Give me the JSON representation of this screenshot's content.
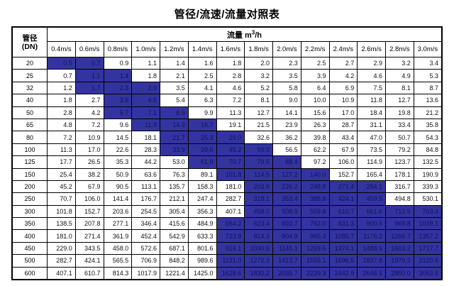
{
  "title": "管径/流速/流量对照表",
  "header": {
    "pipe_label_line1": "管径",
    "pipe_label_line2": "(DN)",
    "flow_label_prefix": "流量 m",
    "flow_label_sup": "3",
    "flow_label_suffix": "/h"
  },
  "colors": {
    "highlight_bg": "#3434A0",
    "highlight_text": "#10105C",
    "border": "#000000"
  },
  "chart_data": {
    "type": "table",
    "title": "管径/流速/流量对照表",
    "corner_header": "管径 (DN)",
    "value_unit": "流量 m3/h",
    "columns": [
      "0.4m/s",
      "0.6m/s",
      "0.8m/s",
      "1.0m/s",
      "1.2m/s",
      "1.4m/s",
      "1.6m/s",
      "1.8m/s",
      "2.0m/s",
      "2.2m/s",
      "2.4m/s",
      "2.6m/s",
      "2.8m/s",
      "3.0m/s"
    ],
    "rows": [
      {
        "dn": "20",
        "values": [
          "0.5",
          "0.7",
          "0.9",
          "1.1",
          "1.4",
          "1.6",
          "1.8",
          "2.0",
          "2.3",
          "2.5",
          "2.7",
          "2.9",
          "3.2",
          "3.4"
        ],
        "highlight_from": 0,
        "highlight_to": 1
      },
      {
        "dn": "25",
        "values": [
          "0.7",
          "1.1",
          "1.4",
          "1.8",
          "2.1",
          "2.5",
          "2.8",
          "3.2",
          "3.5",
          "3.9",
          "4.2",
          "4.6",
          "4.9",
          "5.3"
        ],
        "highlight_from": 1,
        "highlight_to": 2
      },
      {
        "dn": "32",
        "values": [
          "1.2",
          "1.7",
          "2.3",
          "2.9",
          "3.5",
          "4.1",
          "4.6",
          "5.2",
          "5.8",
          "6.4",
          "6.9",
          "7.5",
          "8.1",
          "8.7"
        ],
        "highlight_from": 1,
        "highlight_to": 3
      },
      {
        "dn": "40",
        "values": [
          "1.8",
          "2.7",
          "3.6",
          "4.5",
          "5.4",
          "6.3",
          "7.2",
          "8.1",
          "9.0",
          "10.0",
          "10.9",
          "11.8",
          "12.7",
          "13.6"
        ],
        "highlight_from": 2,
        "highlight_to": 3
      },
      {
        "dn": "50",
        "values": [
          "2.8",
          "4.2",
          "5.7",
          "7.1",
          "8.5",
          "9.9",
          "11.3",
          "12.7",
          "14.1",
          "15.6",
          "17.0",
          "18.4",
          "19.8",
          "21.2"
        ],
        "highlight_from": 2,
        "highlight_to": 4
      },
      {
        "dn": "65",
        "values": [
          "4.8",
          "7.2",
          "9.6",
          "11.9",
          "14.3",
          "16.7",
          "19.1",
          "21.5",
          "23.9",
          "26.3",
          "28.7",
          "31.1",
          "33.4",
          "35.8"
        ],
        "highlight_from": 3,
        "highlight_to": 5
      },
      {
        "dn": "80",
        "values": [
          "7.2",
          "10.9",
          "14.5",
          "18.1",
          "21.7",
          "25.3",
          "29.0",
          "32.6",
          "36.2",
          "39.8",
          "43.4",
          "47.0",
          "50.7",
          "54.3"
        ],
        "highlight_from": 4,
        "highlight_to": 6
      },
      {
        "dn": "100",
        "values": [
          "11.3",
          "17.0",
          "22.6",
          "28.3",
          "33.9",
          "39.6",
          "45.2",
          "50.9",
          "56.5",
          "62.2",
          "67.9",
          "73.5",
          "79.2",
          "84.8"
        ],
        "highlight_from": 4,
        "highlight_to": 7
      },
      {
        "dn": "125",
        "values": [
          "17.7",
          "26.5",
          "35.3",
          "44.2",
          "53.0",
          "61.9",
          "70.7",
          "79.5",
          "88.4",
          "97.2",
          "106.0",
          "114.9",
          "123.7",
          "132.5"
        ],
        "highlight_from": 5,
        "highlight_to": 8
      },
      {
        "dn": "150",
        "values": [
          "25.4",
          "38.2",
          "50.9",
          "63.6",
          "76.3",
          "89.1",
          "101.8",
          "114.5",
          "127.2",
          "140.0",
          "152.7",
          "165.4",
          "178.1",
          "190.9"
        ],
        "highlight_from": 6,
        "highlight_to": 9
      },
      {
        "dn": "200",
        "values": [
          "45.2",
          "67.9",
          "90.5",
          "113.1",
          "135.7",
          "158.3",
          "181.0",
          "203.6",
          "226.2",
          "248.8",
          "271.4",
          "294.1",
          "316.7",
          "339.3"
        ],
        "highlight_from": 7,
        "highlight_to": 11
      },
      {
        "dn": "250",
        "values": [
          "70.7",
          "106.0",
          "141.4",
          "176.7",
          "212.1",
          "247.4",
          "282.7",
          "318.1",
          "353.4",
          "388.8",
          "424.1",
          "459.5",
          "494.8",
          "530.1"
        ],
        "highlight_from": 7,
        "highlight_to": 11
      },
      {
        "dn": "300",
        "values": [
          "101.8",
          "152.7",
          "203.6",
          "254.5",
          "305.4",
          "356.3",
          "407.1",
          "458.0",
          "508.9",
          "559.8",
          "610.7",
          "661.6",
          "712.5",
          "763.4"
        ],
        "highlight_from": 7,
        "highlight_to": 13
      },
      {
        "dn": "350",
        "values": [
          "138.5",
          "207.8",
          "277.1",
          "346.4",
          "415.6",
          "484.9",
          "554.2",
          "623.4",
          "692.7",
          "762.0",
          "831.3",
          "900.5",
          "969.8",
          "1039.1"
        ],
        "highlight_from": 6,
        "highlight_to": 13
      },
      {
        "dn": "400",
        "values": [
          "181.0",
          "271.4",
          "361.9",
          "452.4",
          "542.9",
          "633.3",
          "723.8",
          "814.3",
          "904.8",
          "995.3",
          "1085.7",
          "1176.2",
          "1266.7",
          "1357.2"
        ],
        "highlight_from": 6,
        "highlight_to": 13
      },
      {
        "dn": "450",
        "values": [
          "229.0",
          "343.5",
          "458.0",
          "572.6",
          "687.1",
          "801.6",
          "916.1",
          "1030.6",
          "1145.1",
          "1259.6",
          "1374.1",
          "1488.6",
          "1603.2",
          "1717.7"
        ],
        "highlight_from": 6,
        "highlight_to": 13
      },
      {
        "dn": "500",
        "values": [
          "282.7",
          "424.1",
          "565.5",
          "706.9",
          "848.2",
          "989.6",
          "1131.0",
          "1272.3",
          "1413.7",
          "1555.1",
          "1696.5",
          "1837.8",
          "1979.2",
          "2120.6"
        ],
        "highlight_from": 6,
        "highlight_to": 13
      },
      {
        "dn": "600",
        "values": [
          "407.1",
          "610.7",
          "814.3",
          "1017.9",
          "1221.4",
          "1425.0",
          "1628.6",
          "1832.2",
          "2035.7",
          "2239.3",
          "2442.9",
          "2646.5",
          "2850.0",
          "3053.6"
        ],
        "highlight_from": 6,
        "highlight_to": 13
      }
    ]
  }
}
